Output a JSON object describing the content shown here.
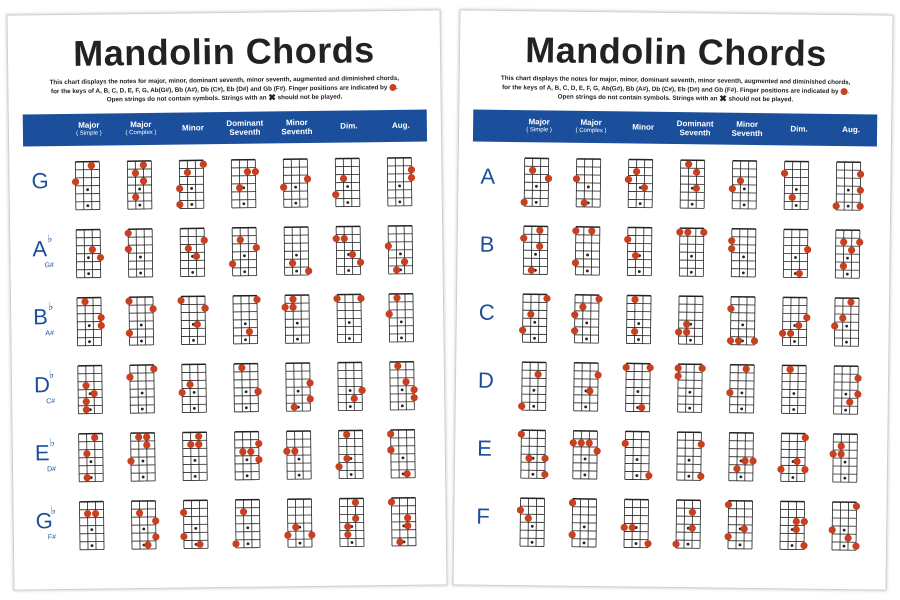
{
  "posters": [
    {
      "title": "Mandolin Chords",
      "description": [
        "This chart displays the notes for major, minor, dominant seventh, minor seventh, augmented and diminished chords, for the keys of A, B, C, D, E, F, G, Ab(G#), Bb (A#), Db (C#), Eb (D#) and Gb (F#). Finger positions are indicated by",
        ". Open strings do not contain symbols. Strings with an",
        "should not be played."
      ],
      "columns": [
        {
          "name": "Major",
          "sub": "( Simple )"
        },
        {
          "name": "Major",
          "sub": "( Complex )"
        },
        {
          "name": "Minor"
        },
        {
          "name": "Dominant Seventh"
        },
        {
          "name": "Minor Seventh"
        },
        {
          "name": "Dim."
        },
        {
          "name": "Aug."
        }
      ],
      "rows": [
        {
          "label": "G"
        },
        {
          "label": "A",
          "accidental": "♭",
          "alt": "G#"
        },
        {
          "label": "B",
          "accidental": "♭",
          "alt": "A#"
        },
        {
          "label": "D",
          "accidental": "♭",
          "alt": "C#"
        },
        {
          "label": "E",
          "accidental": "♭",
          "alt": "D#"
        },
        {
          "label": "G",
          "accidental": "♭",
          "alt": "F#"
        }
      ]
    },
    {
      "title": "Mandolin Chords",
      "description": [
        "This chart displays the notes for major, minor, dominant seventh, minor seventh, augmented and diminished chords, for the keys of A, B, C, D, E, F, G, Ab(G#), Bb (A#), Db (C#), Eb (D#) and Gb (F#). Finger positions are indicated by",
        ". Open strings do not contain symbols. Strings with an",
        "should not be played."
      ],
      "columns": [
        {
          "name": "Major",
          "sub": "( Simple )"
        },
        {
          "name": "Major",
          "sub": "( Complex )"
        },
        {
          "name": "Minor"
        },
        {
          "name": "Dominant Seventh"
        },
        {
          "name": "Minor Seventh"
        },
        {
          "name": "Dim."
        },
        {
          "name": "Aug."
        }
      ],
      "rows": [
        {
          "label": "A"
        },
        {
          "label": "B"
        },
        {
          "label": "C"
        },
        {
          "label": "D"
        },
        {
          "label": "E"
        },
        {
          "label": "F"
        }
      ]
    }
  ]
}
